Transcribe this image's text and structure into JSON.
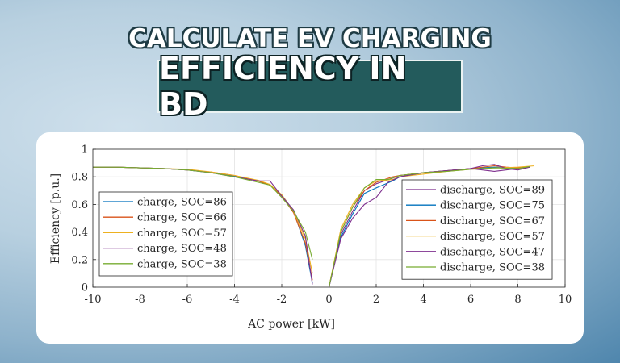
{
  "header": {
    "line1": "CALCULATE EV CHARGING",
    "line2": "EFFICIENCY IN BD"
  },
  "colors": {
    "title_box": "#235b5c",
    "series": [
      "#0072bd",
      "#d95319",
      "#edb120",
      "#7e2f8e",
      "#77ac30"
    ]
  },
  "chart_data": {
    "type": "line",
    "xlabel": "AC power [kW]",
    "ylabel": "Efficiency [p.u.]",
    "xlim": [
      -10,
      10
    ],
    "ylim": [
      0,
      1
    ],
    "xticks": [
      -10,
      -8,
      -6,
      -4,
      -2,
      0,
      2,
      4,
      6,
      8,
      10
    ],
    "yticks": [
      0,
      0.2,
      0.4,
      0.6,
      0.8,
      1
    ],
    "grid": true,
    "legend_charge_placement": "lower-left",
    "legend_discharge_placement": "lower-right",
    "series": [
      {
        "name": "charge, SOC=86",
        "group": "charge",
        "color": "#0072bd",
        "x": [
          -10,
          -9,
          -8,
          -7,
          -6,
          -5,
          -4,
          -3,
          -2.5,
          -2,
          -1.5,
          -1,
          -0.7
        ],
        "y": [
          0.87,
          0.87,
          0.865,
          0.86,
          0.85,
          0.83,
          0.805,
          0.77,
          0.74,
          0.67,
          0.55,
          0.3,
          0.03
        ]
      },
      {
        "name": "charge, SOC=66",
        "group": "charge",
        "color": "#d95319",
        "x": [
          -10,
          -9,
          -8,
          -7,
          -6,
          -5,
          -4,
          -3,
          -2.5,
          -2,
          -1.5,
          -1,
          -0.7
        ],
        "y": [
          0.87,
          0.87,
          0.865,
          0.86,
          0.85,
          0.835,
          0.81,
          0.77,
          0.74,
          0.66,
          0.54,
          0.32,
          0.05
        ]
      },
      {
        "name": "charge, SOC=57",
        "group": "charge",
        "color": "#edb120",
        "x": [
          -10,
          -9,
          -8,
          -7,
          -6,
          -5,
          -4,
          -3,
          -2.5,
          -2,
          -1.5,
          -1,
          -0.7
        ],
        "y": [
          0.87,
          0.87,
          0.865,
          0.86,
          0.855,
          0.835,
          0.81,
          0.775,
          0.745,
          0.67,
          0.55,
          0.35,
          0.1
        ]
      },
      {
        "name": "charge, SOC=48",
        "group": "charge",
        "color": "#7e2f8e",
        "x": [
          -10,
          -9,
          -8,
          -7,
          -6,
          -5,
          -4,
          -3,
          -2.5,
          -2,
          -1.5,
          -1,
          -0.7
        ],
        "y": [
          0.87,
          0.87,
          0.865,
          0.86,
          0.85,
          0.83,
          0.8,
          0.77,
          0.77,
          0.66,
          0.56,
          0.37,
          0.02
        ]
      },
      {
        "name": "charge, SOC=38",
        "group": "charge",
        "color": "#77ac30",
        "x": [
          -10,
          -9,
          -8,
          -7,
          -6,
          -5,
          -4,
          -3,
          -2.5,
          -2,
          -1.5,
          -1,
          -0.7
        ],
        "y": [
          0.87,
          0.87,
          0.865,
          0.86,
          0.85,
          0.83,
          0.8,
          0.76,
          0.74,
          0.65,
          0.55,
          0.4,
          0.2
        ]
      },
      {
        "name": "discharge, SOC=89",
        "group": "discharge",
        "color": "#7e2f8e",
        "x": [
          0,
          0.5,
          1,
          1.5,
          2,
          2.7,
          3,
          4,
          5,
          6,
          7,
          8,
          8.5
        ],
        "y": [
          0,
          0.38,
          0.55,
          0.7,
          0.75,
          0.79,
          0.81,
          0.83,
          0.845,
          0.86,
          0.84,
          0.86,
          0.87
        ]
      },
      {
        "name": "discharge, SOC=75",
        "group": "discharge",
        "color": "#0072bd",
        "x": [
          0,
          0.5,
          1,
          1.5,
          2,
          2.7,
          3,
          4,
          5,
          6,
          7,
          8,
          8.5
        ],
        "y": [
          0,
          0.36,
          0.53,
          0.68,
          0.72,
          0.77,
          0.8,
          0.83,
          0.845,
          0.86,
          0.87,
          0.865,
          0.87
        ]
      },
      {
        "name": "discharge, SOC=67",
        "group": "discharge",
        "color": "#d95319",
        "x": [
          0,
          0.5,
          1,
          1.5,
          2,
          2.7,
          3,
          4,
          5,
          6,
          7,
          7.5,
          8,
          8.5
        ],
        "y": [
          0,
          0.4,
          0.58,
          0.7,
          0.76,
          0.8,
          0.81,
          0.83,
          0.845,
          0.86,
          0.88,
          0.87,
          0.865,
          0.87
        ]
      },
      {
        "name": "discharge, SOC=57",
        "group": "discharge",
        "color": "#edb120",
        "x": [
          0,
          0.5,
          1,
          1.5,
          2,
          2.7,
          3,
          4,
          5,
          6,
          7,
          8,
          8.7
        ],
        "y": [
          0,
          0.42,
          0.6,
          0.72,
          0.77,
          0.78,
          0.8,
          0.82,
          0.84,
          0.855,
          0.865,
          0.87,
          0.88
        ]
      },
      {
        "name": "discharge, SOC=47",
        "group": "discharge",
        "color": "#7e2f8e",
        "x": [
          0,
          0.5,
          1,
          1.5,
          2,
          2.5,
          3,
          4,
          5,
          6,
          6.5,
          7,
          7.5,
          8,
          8.5
        ],
        "y": [
          0,
          0.35,
          0.5,
          0.6,
          0.65,
          0.76,
          0.8,
          0.83,
          0.845,
          0.86,
          0.88,
          0.89,
          0.86,
          0.85,
          0.87
        ]
      },
      {
        "name": "discharge, SOC=38",
        "group": "discharge",
        "color": "#77ac30",
        "x": [
          0,
          0.5,
          1,
          1.5,
          2,
          2.5,
          3,
          4,
          5,
          6,
          7,
          8,
          8.5
        ],
        "y": [
          0,
          0.4,
          0.58,
          0.72,
          0.78,
          0.78,
          0.81,
          0.83,
          0.84,
          0.855,
          0.865,
          0.86,
          0.875
        ]
      }
    ]
  }
}
